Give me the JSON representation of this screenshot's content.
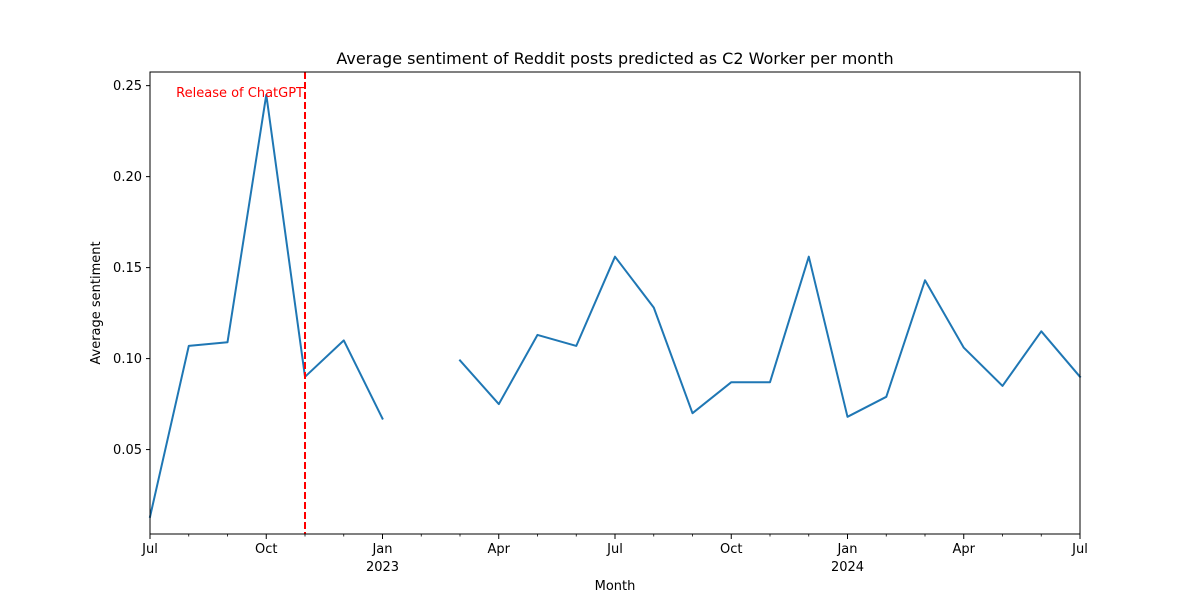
{
  "chart_data": {
    "type": "line",
    "title": "Average sentiment of Reddit posts predicted as C2 Worker per month",
    "xlabel": "Month",
    "ylabel": "Average sentiment",
    "x_range": [
      "2022-07",
      "2024-07"
    ],
    "ylim": [
      0.0036,
      0.2575
    ],
    "y_ticks": [
      0.05,
      0.1,
      0.15,
      0.2,
      0.25
    ],
    "y_tick_labels": [
      "0.05",
      "0.10",
      "0.15",
      "0.20",
      "0.25"
    ],
    "x_ticks": [
      {
        "month": "2022-07",
        "label": "Jul"
      },
      {
        "month": "2022-10",
        "label": "Oct"
      },
      {
        "month": "2023-01",
        "label": "Jan",
        "year_label": "2023"
      },
      {
        "month": "2023-04",
        "label": "Apr"
      },
      {
        "month": "2023-07",
        "label": "Jul"
      },
      {
        "month": "2023-10",
        "label": "Oct"
      },
      {
        "month": "2024-01",
        "label": "Jan",
        "year_label": "2024"
      },
      {
        "month": "2024-04",
        "label": "Apr"
      },
      {
        "month": "2024-07",
        "label": "Jul"
      }
    ],
    "grid": false,
    "series": [
      {
        "color": "#1f77b4",
        "points": [
          {
            "x": "2022-07",
            "y": 0.013
          },
          {
            "x": "2022-08",
            "y": 0.107
          },
          {
            "x": "2022-09",
            "y": 0.109
          },
          {
            "x": "2022-10",
            "y": 0.245
          },
          {
            "x": "2022-11",
            "y": 0.09
          },
          {
            "x": "2022-12",
            "y": 0.11
          },
          {
            "x": "2023-01",
            "y": 0.067
          },
          {
            "x": "2023-02",
            "y": null
          },
          {
            "x": "2023-03",
            "y": 0.099
          },
          {
            "x": "2023-04",
            "y": 0.075
          },
          {
            "x": "2023-05",
            "y": 0.113
          },
          {
            "x": "2023-06",
            "y": 0.107
          },
          {
            "x": "2023-07",
            "y": 0.156
          },
          {
            "x": "2023-08",
            "y": 0.128
          },
          {
            "x": "2023-09",
            "y": 0.07
          },
          {
            "x": "2023-10",
            "y": 0.087
          },
          {
            "x": "2023-11",
            "y": 0.087
          },
          {
            "x": "2023-12",
            "y": 0.156
          },
          {
            "x": "2024-01",
            "y": 0.068
          },
          {
            "x": "2024-02",
            "y": 0.079
          },
          {
            "x": "2024-03",
            "y": 0.143
          },
          {
            "x": "2024-04",
            "y": 0.106
          },
          {
            "x": "2024-05",
            "y": 0.085
          },
          {
            "x": "2024-06",
            "y": 0.115
          },
          {
            "x": "2024-07",
            "y": 0.09
          }
        ]
      }
    ],
    "annotations": [
      {
        "type": "vline",
        "x": "2022-11",
        "color": "#ff0000",
        "style": "dashed",
        "label": "Release of ChatGPT"
      }
    ]
  }
}
